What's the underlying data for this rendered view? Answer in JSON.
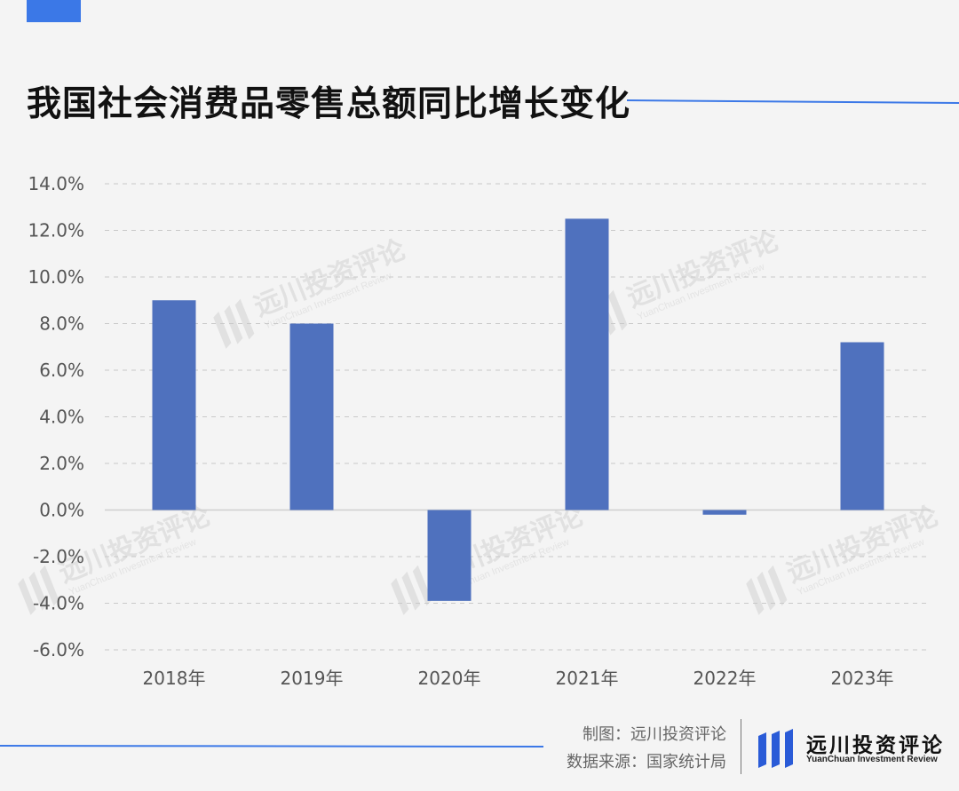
{
  "title": "我国社会消费品零售总额同比增长变化",
  "colors": {
    "accent": "#3b78e7",
    "bar": "#4f71be",
    "grid": "#c9c9c9",
    "zero_line": "#cfcfcf",
    "watermark": "#e1e1e1"
  },
  "chart_data": {
    "type": "bar",
    "title": "我国社会消费品零售总额同比增长变化",
    "xlabel": "",
    "ylabel": "",
    "categories": [
      "2018年",
      "2019年",
      "2020年",
      "2021年",
      "2022年",
      "2023年"
    ],
    "values": [
      9.0,
      8.0,
      -3.9,
      12.5,
      -0.2,
      7.2
    ],
    "value_unit": "%",
    "ylim": [
      -6.0,
      14.0
    ],
    "yticks": [
      14.0,
      12.0,
      10.0,
      8.0,
      6.0,
      4.0,
      2.0,
      0.0,
      -2.0,
      -4.0,
      -6.0
    ],
    "ytick_labels": [
      "14.0%",
      "12.0%",
      "10.0%",
      "8.0%",
      "6.0%",
      "4.0%",
      "2.0%",
      "0.0%",
      "-2.0%",
      "-4.0%",
      "-6.0%"
    ],
    "grid": true,
    "legend": "none"
  },
  "watermark": {
    "text": "远川投资评论",
    "subtext": "YuanChuan Investment Review"
  },
  "footer": {
    "credit_line": "制图：远川投资评论",
    "source_line": "数据来源：国家统计局",
    "logo_cn": "远川投资评论",
    "logo_en": "YuanChuan Investment Review"
  }
}
